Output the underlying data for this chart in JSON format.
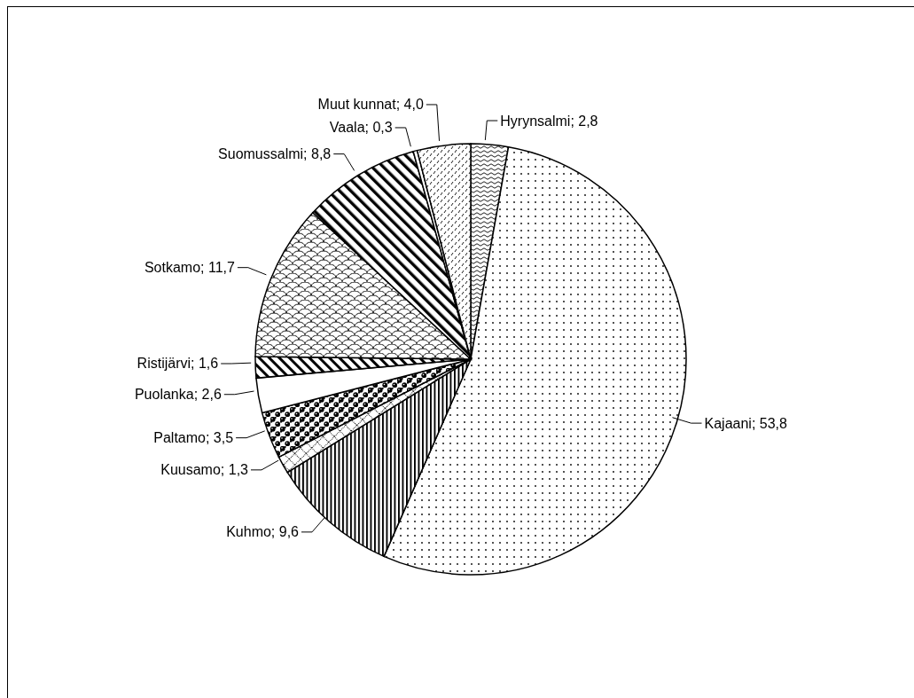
{
  "chart_data": {
    "type": "pie",
    "categories": [
      "Hyrynsalmi",
      "Kajaani",
      "Kuhmo",
      "Kuusamo",
      "Paltamo",
      "Puolanka",
      "Ristijärvi",
      "Sotkamo",
      "Suomussalmi",
      "Vaala",
      "Muut kunnat"
    ],
    "values": [
      2.8,
      53.8,
      9.6,
      1.3,
      3.5,
      2.6,
      1.6,
      11.7,
      8.8,
      0.3,
      4.0
    ],
    "value_labels": [
      "2,8",
      "53,8",
      "9,6",
      "1,3",
      "3,5",
      "2,6",
      "1,6",
      "11,7",
      "8,8",
      "0,3",
      "4,0"
    ],
    "colors": [
      "#000000",
      "#000000",
      "#000000",
      "#000000",
      "#000000",
      "#ffffff",
      "#000000",
      "#000000",
      "#000000",
      "#ffffff",
      "#000000"
    ]
  }
}
